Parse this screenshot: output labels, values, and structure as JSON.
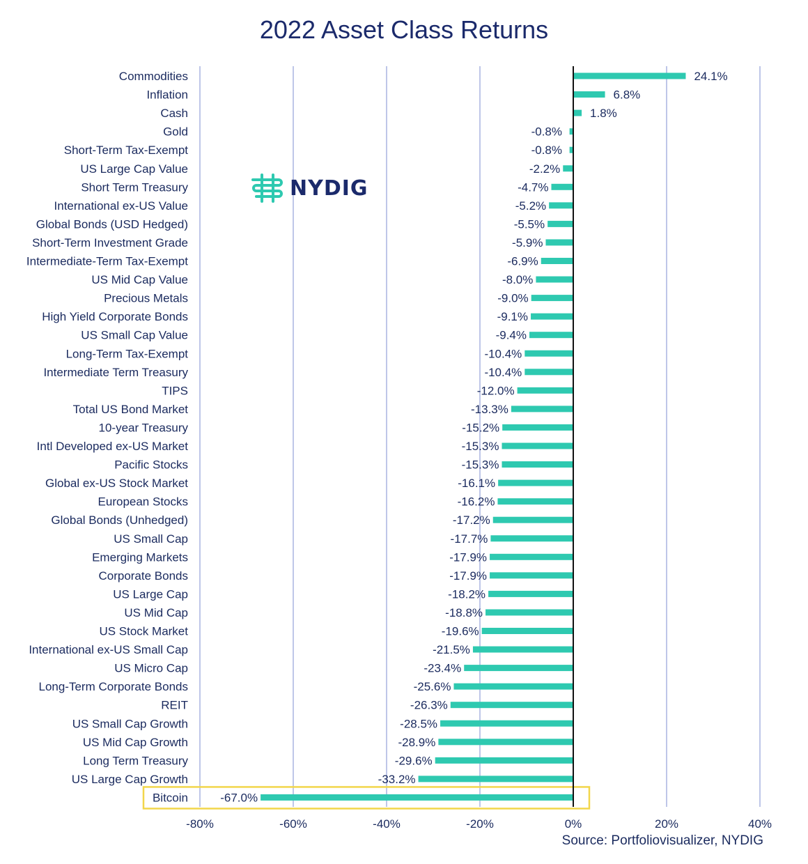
{
  "chart_data": {
    "type": "bar",
    "orientation": "horizontal",
    "title": "2022 Asset Class Returns",
    "source": "Source: Portfoliovisualizer, NYDIG",
    "logo_text": "NYDIG",
    "bar_color": "#2ec9b0",
    "highlight_color": "#f2d64b",
    "grid_color": "#a9b4e0",
    "text_color": "#1a2a5e",
    "title_color": "#1b2a6b",
    "xlim": [
      -80,
      40
    ],
    "xticks": [
      {
        "value": -80,
        "label": "-80%"
      },
      {
        "value": -60,
        "label": "-60%"
      },
      {
        "value": -40,
        "label": "-40%"
      },
      {
        "value": -20,
        "label": "-20%"
      },
      {
        "value": 0,
        "label": "0%"
      },
      {
        "value": 20,
        "label": "20%"
      },
      {
        "value": 40,
        "label": "40%"
      }
    ],
    "grid": true,
    "highlighted_category": "Bitcoin",
    "categories": [
      {
        "name": "Commodities",
        "value": 24.1,
        "label": "24.1%"
      },
      {
        "name": "Inflation",
        "value": 6.8,
        "label": "6.8%"
      },
      {
        "name": "Cash",
        "value": 1.8,
        "label": "1.8%"
      },
      {
        "name": "Gold",
        "value": -0.8,
        "label": "-0.8%"
      },
      {
        "name": "Short-Term Tax-Exempt",
        "value": -0.8,
        "label": "-0.8%"
      },
      {
        "name": "US Large Cap Value",
        "value": -2.2,
        "label": "-2.2%"
      },
      {
        "name": "Short Term Treasury",
        "value": -4.7,
        "label": "-4.7%"
      },
      {
        "name": "International ex-US Value",
        "value": -5.2,
        "label": "-5.2%"
      },
      {
        "name": "Global Bonds (USD Hedged)",
        "value": -5.5,
        "label": "-5.5%"
      },
      {
        "name": "Short-Term Investment Grade",
        "value": -5.9,
        "label": "-5.9%"
      },
      {
        "name": "Intermediate-Term Tax-Exempt",
        "value": -6.9,
        "label": "-6.9%"
      },
      {
        "name": "US Mid Cap Value",
        "value": -8.0,
        "label": "-8.0%"
      },
      {
        "name": "Precious Metals",
        "value": -9.0,
        "label": "-9.0%"
      },
      {
        "name": "High Yield Corporate Bonds",
        "value": -9.1,
        "label": "-9.1%"
      },
      {
        "name": "US Small Cap Value",
        "value": -9.4,
        "label": "-9.4%"
      },
      {
        "name": "Long-Term Tax-Exempt",
        "value": -10.4,
        "label": "-10.4%"
      },
      {
        "name": "Intermediate Term Treasury",
        "value": -10.4,
        "label": "-10.4%"
      },
      {
        "name": "TIPS",
        "value": -12.0,
        "label": "-12.0%"
      },
      {
        "name": "Total US Bond Market",
        "value": -13.3,
        "label": "-13.3%"
      },
      {
        "name": "10-year Treasury",
        "value": -15.2,
        "label": "-15.2%"
      },
      {
        "name": "Intl Developed ex-US Market",
        "value": -15.3,
        "label": "-15.3%"
      },
      {
        "name": "Pacific Stocks",
        "value": -15.3,
        "label": "-15.3%"
      },
      {
        "name": "Global ex-US Stock Market",
        "value": -16.1,
        "label": "-16.1%"
      },
      {
        "name": "European Stocks",
        "value": -16.2,
        "label": "-16.2%"
      },
      {
        "name": "Global Bonds (Unhedged)",
        "value": -17.2,
        "label": "-17.2%"
      },
      {
        "name": "US Small Cap",
        "value": -17.7,
        "label": "-17.7%"
      },
      {
        "name": "Emerging Markets",
        "value": -17.9,
        "label": "-17.9%"
      },
      {
        "name": "Corporate Bonds",
        "value": -17.9,
        "label": "-17.9%"
      },
      {
        "name": "US Large Cap",
        "value": -18.2,
        "label": "-18.2%"
      },
      {
        "name": "US Mid Cap",
        "value": -18.8,
        "label": "-18.8%"
      },
      {
        "name": "US Stock Market",
        "value": -19.6,
        "label": "-19.6%"
      },
      {
        "name": "International ex-US Small Cap",
        "value": -21.5,
        "label": "-21.5%"
      },
      {
        "name": "US Micro Cap",
        "value": -23.4,
        "label": "-23.4%"
      },
      {
        "name": "Long-Term Corporate Bonds",
        "value": -25.6,
        "label": "-25.6%"
      },
      {
        "name": "REIT",
        "value": -26.3,
        "label": "-26.3%"
      },
      {
        "name": "US Small Cap Growth",
        "value": -28.5,
        "label": "-28.5%"
      },
      {
        "name": "US Mid Cap Growth",
        "value": -28.9,
        "label": "-28.9%"
      },
      {
        "name": "Long Term Treasury",
        "value": -29.6,
        "label": "-29.6%"
      },
      {
        "name": "US Large Cap Growth",
        "value": -33.2,
        "label": "-33.2%"
      },
      {
        "name": "Bitcoin",
        "value": -67.0,
        "label": "-67.0%"
      }
    ]
  }
}
